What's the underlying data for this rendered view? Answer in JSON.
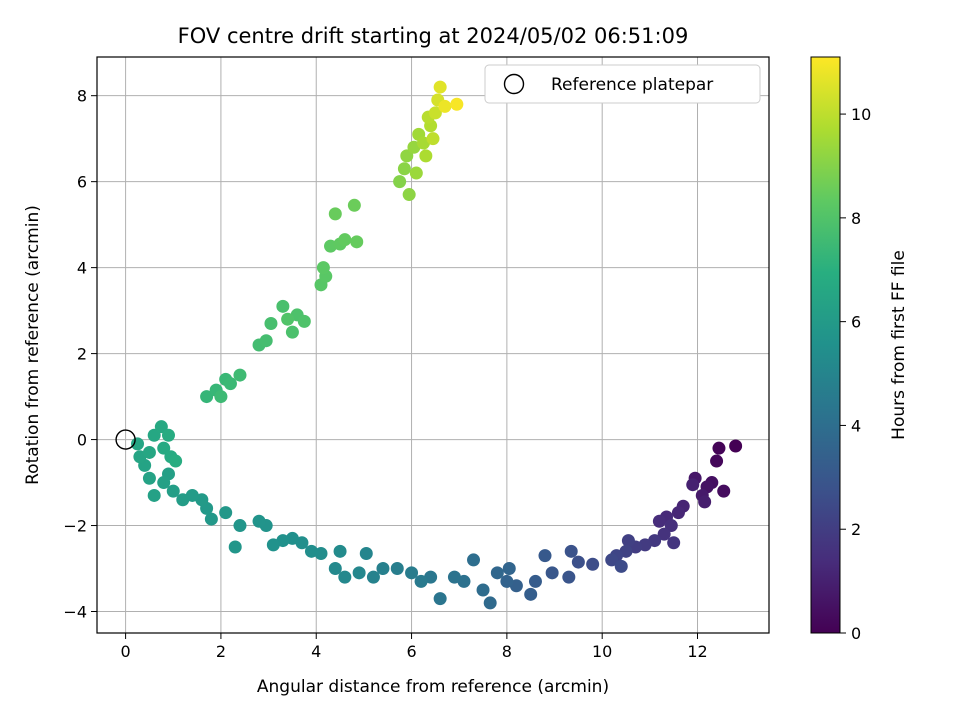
{
  "chart_data": {
    "type": "scatter",
    "title": "FOV centre drift starting at 2024/05/02 06:51:09",
    "xlabel": "Angular distance from reference (arcmin)",
    "ylabel": "Rotation from reference (arcmin)",
    "xlim": [
      -0.6,
      13.5
    ],
    "ylim": [
      -4.5,
      8.9
    ],
    "x_ticks": [
      0,
      2,
      4,
      6,
      8,
      10,
      12
    ],
    "y_ticks": [
      -4,
      -2,
      0,
      2,
      4,
      6,
      8
    ],
    "grid": true,
    "legend": {
      "placement": "top-right",
      "entries": [
        "Reference platepar"
      ]
    },
    "colorbar": {
      "label": "Hours from first FF file",
      "range": [
        0,
        11.1
      ],
      "ticks": [
        0,
        2,
        4,
        6,
        8,
        10
      ],
      "colormap": "viridis"
    },
    "reference_point": {
      "x": 0,
      "y": 0,
      "label": "Reference platepar"
    },
    "series": [
      {
        "points": [
          [
            12.8,
            -0.15,
            0.0
          ],
          [
            12.45,
            -0.2,
            0.1
          ],
          [
            12.4,
            -0.5,
            0.2
          ],
          [
            12.55,
            -1.2,
            0.35
          ],
          [
            12.3,
            -1.0,
            0.45
          ],
          [
            12.2,
            -1.1,
            0.55
          ],
          [
            11.95,
            -0.9,
            0.7
          ],
          [
            12.1,
            -1.3,
            0.8
          ],
          [
            12.15,
            -1.45,
            0.9
          ],
          [
            11.9,
            -1.05,
            1.0
          ],
          [
            11.7,
            -1.55,
            1.1
          ],
          [
            11.6,
            -1.7,
            1.2
          ],
          [
            11.35,
            -1.8,
            1.3
          ],
          [
            11.2,
            -1.9,
            1.4
          ],
          [
            11.45,
            -2.0,
            1.5
          ],
          [
            11.3,
            -2.2,
            1.6
          ],
          [
            11.5,
            -2.4,
            1.7
          ],
          [
            11.1,
            -2.35,
            1.8
          ],
          [
            10.9,
            -2.45,
            1.9
          ],
          [
            10.7,
            -2.5,
            2.0
          ],
          [
            10.55,
            -2.35,
            2.1
          ],
          [
            10.5,
            -2.6,
            2.2
          ],
          [
            10.3,
            -2.7,
            2.3
          ],
          [
            10.2,
            -2.8,
            2.4
          ],
          [
            10.4,
            -2.95,
            2.5
          ],
          [
            9.8,
            -2.9,
            2.6
          ],
          [
            9.5,
            -2.85,
            2.7
          ],
          [
            9.35,
            -2.6,
            2.8
          ],
          [
            9.3,
            -3.2,
            2.9
          ],
          [
            8.95,
            -3.1,
            3.0
          ],
          [
            8.8,
            -2.7,
            3.1
          ],
          [
            8.6,
            -3.3,
            3.2
          ],
          [
            8.5,
            -3.6,
            3.3
          ],
          [
            8.2,
            -3.4,
            3.4
          ],
          [
            8.0,
            -3.3,
            3.5
          ],
          [
            8.05,
            -3.0,
            3.6
          ],
          [
            7.8,
            -3.1,
            3.7
          ],
          [
            7.65,
            -3.8,
            3.8
          ],
          [
            7.5,
            -3.5,
            3.9
          ],
          [
            7.3,
            -2.8,
            4.0
          ],
          [
            7.1,
            -3.3,
            4.1
          ],
          [
            6.9,
            -3.2,
            4.2
          ],
          [
            6.6,
            -3.7,
            4.3
          ],
          [
            6.4,
            -3.2,
            4.4
          ],
          [
            6.2,
            -3.3,
            4.5
          ],
          [
            6.0,
            -3.1,
            4.6
          ],
          [
            5.7,
            -3.0,
            4.7
          ],
          [
            5.4,
            -3.0,
            4.8
          ],
          [
            5.2,
            -3.2,
            4.9
          ],
          [
            5.05,
            -2.65,
            5.0
          ],
          [
            4.9,
            -3.1,
            5.1
          ],
          [
            4.6,
            -3.2,
            5.15
          ],
          [
            4.4,
            -3.0,
            5.2
          ],
          [
            4.5,
            -2.6,
            5.3
          ],
          [
            4.1,
            -2.65,
            5.35
          ],
          [
            3.9,
            -2.6,
            5.4
          ],
          [
            3.7,
            -2.4,
            5.45
          ],
          [
            3.5,
            -2.3,
            5.5
          ],
          [
            3.3,
            -2.35,
            5.55
          ],
          [
            3.1,
            -2.45,
            5.6
          ],
          [
            2.95,
            -2.0,
            5.65
          ],
          [
            2.8,
            -1.9,
            5.7
          ],
          [
            2.4,
            -2.0,
            5.75
          ],
          [
            2.3,
            -2.5,
            5.8
          ],
          [
            2.1,
            -1.7,
            5.85
          ],
          [
            1.8,
            -1.85,
            5.9
          ],
          [
            1.7,
            -1.6,
            5.95
          ],
          [
            1.6,
            -1.4,
            6.0
          ],
          [
            1.4,
            -1.3,
            6.05
          ],
          [
            1.2,
            -1.4,
            6.1
          ],
          [
            1.0,
            -1.2,
            6.15
          ],
          [
            0.9,
            -0.8,
            6.2
          ],
          [
            0.8,
            -1.0,
            6.25
          ],
          [
            0.6,
            -1.3,
            6.3
          ],
          [
            0.5,
            -0.9,
            6.35
          ],
          [
            0.4,
            -0.6,
            6.4
          ],
          [
            0.3,
            -0.4,
            6.45
          ],
          [
            0.25,
            -0.1,
            6.5
          ],
          [
            0.5,
            -0.3,
            6.55
          ],
          [
            0.6,
            0.1,
            6.6
          ],
          [
            0.75,
            0.3,
            6.65
          ],
          [
            0.8,
            -0.2,
            6.7
          ],
          [
            0.95,
            -0.4,
            6.75
          ],
          [
            0.9,
            0.1,
            6.8
          ],
          [
            1.05,
            -0.5,
            6.85
          ],
          [
            1.7,
            1.0,
            7.3
          ],
          [
            1.9,
            1.15,
            7.35
          ],
          [
            2.1,
            1.4,
            7.4
          ],
          [
            2.2,
            1.3,
            7.45
          ],
          [
            2.0,
            1.0,
            7.5
          ],
          [
            2.4,
            1.5,
            7.55
          ],
          [
            2.8,
            2.2,
            7.65
          ],
          [
            2.95,
            2.3,
            7.7
          ],
          [
            3.05,
            2.7,
            7.75
          ],
          [
            3.3,
            3.1,
            7.8
          ],
          [
            3.5,
            2.5,
            7.85
          ],
          [
            3.6,
            2.9,
            7.9
          ],
          [
            3.75,
            2.75,
            7.95
          ],
          [
            3.4,
            2.8,
            8.0
          ],
          [
            4.1,
            3.6,
            8.15
          ],
          [
            4.2,
            3.8,
            8.2
          ],
          [
            4.15,
            4.0,
            8.25
          ],
          [
            4.3,
            4.5,
            8.3
          ],
          [
            4.5,
            4.55,
            8.35
          ],
          [
            4.6,
            4.65,
            8.4
          ],
          [
            4.85,
            4.6,
            8.45
          ],
          [
            4.4,
            5.25,
            8.5
          ],
          [
            4.8,
            5.45,
            8.55
          ],
          [
            5.75,
            6.0,
            9.0
          ],
          [
            5.85,
            6.3,
            9.1
          ],
          [
            5.95,
            5.7,
            9.15
          ],
          [
            5.9,
            6.6,
            9.2
          ],
          [
            6.05,
            6.8,
            9.3
          ],
          [
            6.1,
            6.2,
            9.4
          ],
          [
            6.15,
            7.1,
            9.5
          ],
          [
            6.25,
            6.9,
            9.6
          ],
          [
            6.3,
            6.6,
            9.7
          ],
          [
            6.4,
            7.3,
            9.8
          ],
          [
            6.35,
            7.5,
            9.9
          ],
          [
            6.45,
            7.0,
            10.0
          ],
          [
            6.5,
            7.6,
            10.2
          ],
          [
            6.55,
            7.9,
            10.4
          ],
          [
            6.6,
            8.2,
            10.6
          ],
          [
            6.7,
            7.75,
            10.8
          ],
          [
            6.95,
            7.8,
            11.0
          ]
        ]
      }
    ]
  }
}
